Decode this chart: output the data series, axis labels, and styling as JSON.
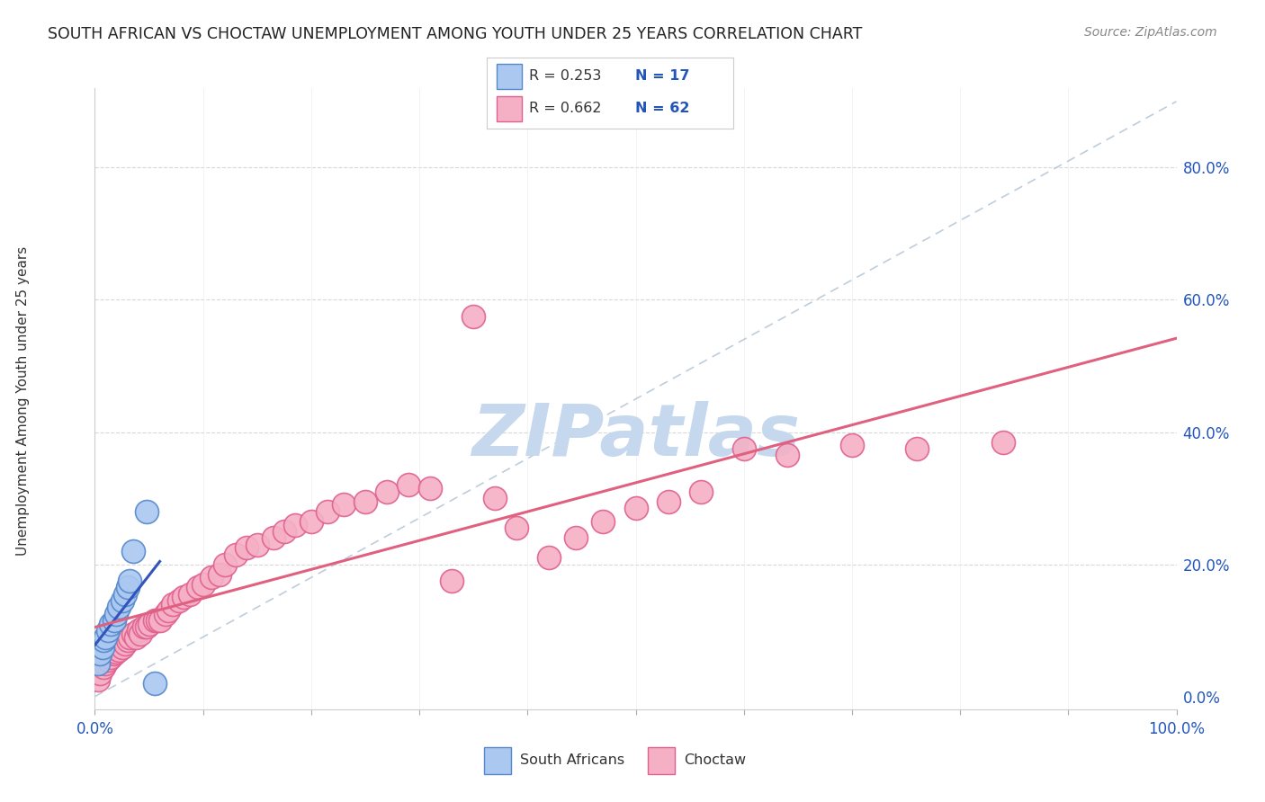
{
  "title": "SOUTH AFRICAN VS CHOCTAW UNEMPLOYMENT AMONG YOUTH UNDER 25 YEARS CORRELATION CHART",
  "source_text": "Source: ZipAtlas.com",
  "ylabel": "Unemployment Among Youth under 25 years",
  "xlim": [
    0.0,
    1.0
  ],
  "ylim": [
    -0.02,
    0.92
  ],
  "y_ticks_right": [
    0.0,
    0.2,
    0.4,
    0.6,
    0.8
  ],
  "y_tick_labels_right": [
    "0.0%",
    "20.0%",
    "40.0%",
    "60.0%",
    "80.0%"
  ],
  "sa_color": "#aac8f0",
  "sa_edge_color": "#5588cc",
  "choctaw_color": "#f5b0c5",
  "choctaw_edge_color": "#e06090",
  "sa_line_color": "#3355bb",
  "choctaw_line_color": "#e06080",
  "diag_line_color": "#b8c8d8",
  "watermark_color": "#c5d8ee",
  "watermark_text": "ZIPatlas",
  "background_color": "#ffffff",
  "grid_color": "#d8d8d8",
  "sa_x": [
    0.005,
    0.008,
    0.01,
    0.012,
    0.015,
    0.018,
    0.02,
    0.022,
    0.025,
    0.028,
    0.03,
    0.033,
    0.035,
    0.038,
    0.04,
    0.05,
    0.06
  ],
  "sa_y": [
    0.03,
    0.06,
    0.065,
    0.07,
    0.08,
    0.09,
    0.1,
    0.11,
    0.115,
    0.12,
    0.13,
    0.14,
    0.15,
    0.155,
    0.17,
    0.28,
    0.02
  ],
  "choctaw_x": [
    0.005,
    0.008,
    0.01,
    0.012,
    0.015,
    0.018,
    0.02,
    0.022,
    0.025,
    0.028,
    0.03,
    0.032,
    0.035,
    0.038,
    0.04,
    0.042,
    0.045,
    0.048,
    0.05,
    0.055,
    0.058,
    0.06,
    0.065,
    0.068,
    0.07,
    0.075,
    0.08,
    0.085,
    0.09,
    0.095,
    0.1,
    0.105,
    0.11,
    0.115,
    0.12,
    0.13,
    0.14,
    0.15,
    0.16,
    0.17,
    0.18,
    0.2,
    0.22,
    0.24,
    0.26,
    0.28,
    0.3,
    0.32,
    0.34,
    0.36,
    0.38,
    0.4,
    0.42,
    0.44,
    0.46,
    0.48,
    0.5,
    0.55,
    0.6,
    0.7,
    0.75,
    0.8
  ],
  "choctaw_y": [
    0.02,
    0.03,
    0.04,
    0.045,
    0.05,
    0.055,
    0.06,
    0.065,
    0.065,
    0.07,
    0.075,
    0.08,
    0.085,
    0.09,
    0.095,
    0.09,
    0.1,
    0.1,
    0.105,
    0.11,
    0.115,
    0.11,
    0.115,
    0.12,
    0.125,
    0.13,
    0.14,
    0.145,
    0.15,
    0.155,
    0.165,
    0.17,
    0.18,
    0.185,
    0.2,
    0.21,
    0.22,
    0.22,
    0.23,
    0.24,
    0.25,
    0.26,
    0.27,
    0.28,
    0.28,
    0.31,
    0.3,
    0.18,
    0.58,
    0.3,
    0.25,
    0.2,
    0.23,
    0.25,
    0.27,
    0.28,
    0.29,
    0.38,
    0.37,
    0.38,
    0.37,
    0.38
  ]
}
